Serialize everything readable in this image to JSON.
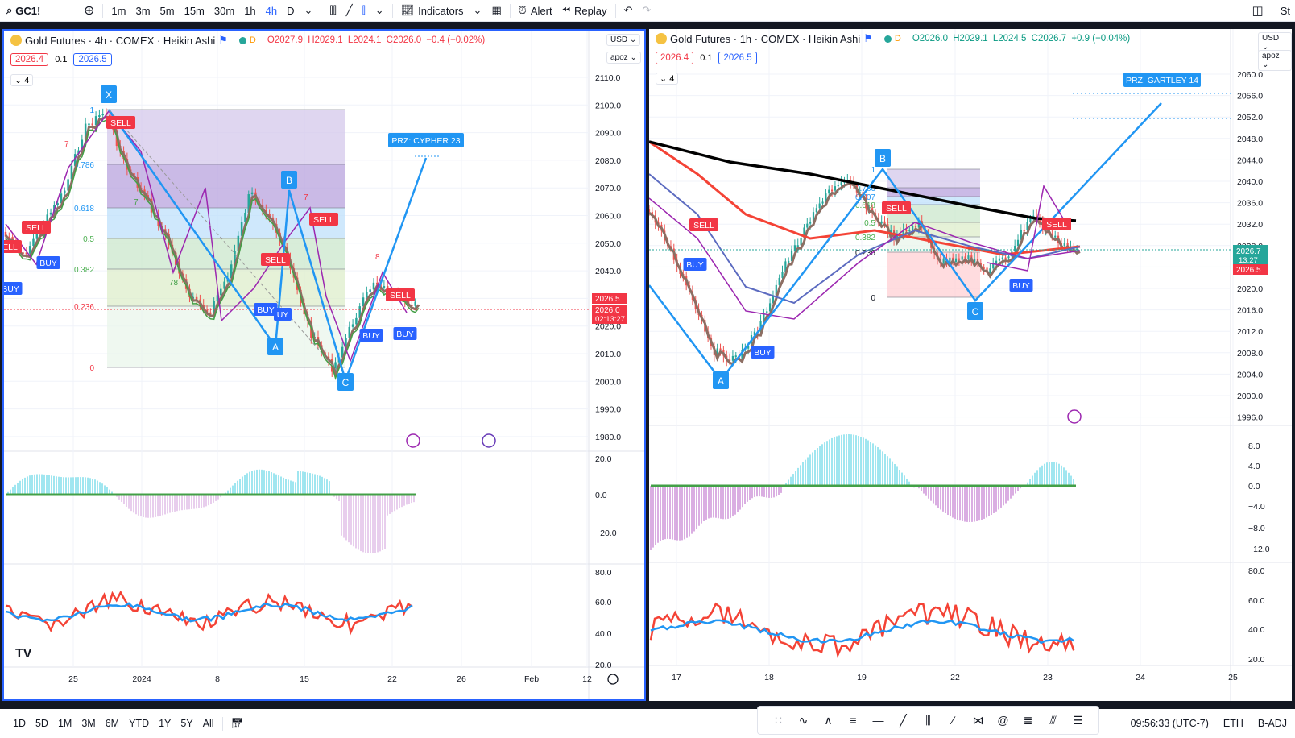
{
  "topbar": {
    "symbol": "GC1!",
    "intervals": [
      "1m",
      "3m",
      "5m",
      "15m",
      "30m",
      "1h",
      "4h",
      "D"
    ],
    "active_interval": "4h",
    "indicators": "Indicators",
    "alert": "Alert",
    "replay": "Replay",
    "right_cut": "St"
  },
  "left": {
    "title": "Gold Futures · 4h · COMEX · Heikin Ashi",
    "badge": "D",
    "ohlc": {
      "o": "O2027.9",
      "h": "H2029.1",
      "l": "L2024.1",
      "c": "C2026.0",
      "chg": "−0.4 (−0.02%)"
    },
    "bid": "2026.4",
    "spread": "0.1",
    "ask": "2026.5",
    "collapse": "4",
    "currency": "USD",
    "scale_mode": "apoz",
    "price_ticks": [
      "2110.0",
      "2100.0",
      "2090.0",
      "2080.0",
      "2070.0",
      "2060.0",
      "2050.0",
      "2040.0",
      "2030.0",
      "2020.0",
      "2010.0",
      "2000.0",
      "1990.0",
      "1980.0"
    ],
    "price_tags": [
      "2026.5",
      "2026.0",
      "02:13:27"
    ],
    "hist_ticks": [
      "20.0",
      "0.0",
      "−20.0"
    ],
    "rsi_ticks": [
      "80.0",
      "60.0",
      "40.0",
      "20.0"
    ],
    "time_ticks": [
      "25",
      "2024",
      "8",
      "15",
      "22",
      "26",
      "Feb",
      "12"
    ],
    "fib_levels": [
      "1",
      "0.786",
      "0.618",
      "0.5",
      "0.382",
      "0.236",
      "0"
    ],
    "points": [
      "X",
      "A",
      "B",
      "C"
    ],
    "prz": "PRZ: CYPHER 23",
    "signals": {
      "sell": "SELL",
      "buy": "BUY",
      "uy": "UY",
      "seven": "7",
      "eight": "8",
      "ts": "78"
    }
  },
  "right": {
    "title": "Gold Futures · 1h · COMEX · Heikin Ashi",
    "badge": "D",
    "ohlc": {
      "o": "O2026.0",
      "h": "H2029.1",
      "l": "L2024.5",
      "c": "C2026.7",
      "chg": "+0.9 (+0.04%)"
    },
    "bid": "2026.4",
    "spread": "0.1",
    "ask": "2026.5",
    "collapse": "4",
    "currency": "USD",
    "scale_mode": "apoz",
    "price_ticks": [
      "2060.0",
      "2056.0",
      "2052.0",
      "2048.0",
      "2044.0",
      "2040.0",
      "2036.0",
      "2032.0",
      "2028.0",
      "2024.0",
      "2020.0",
      "2016.0",
      "2012.0",
      "2008.0",
      "2004.0",
      "2000.0",
      "1996.0"
    ],
    "price_tags": [
      "2026.7",
      "13:27",
      "2026.5"
    ],
    "hist_ticks": [
      "8.0",
      "4.0",
      "0.0",
      "−4.0",
      "−8.0",
      "−12.0"
    ],
    "rsi_ticks": [
      "80.0",
      "60.0",
      "40.0",
      "20.0"
    ],
    "time_ticks": [
      "17",
      "18",
      "19",
      "22",
      "23",
      "24",
      "25"
    ],
    "fib_levels": [
      "1",
      "0.786",
      "0.707",
      "0.618",
      "0.5",
      "0.382",
      "0.236",
      "0"
    ],
    "points": [
      "A",
      "B",
      "C"
    ],
    "prz": "PRZ: GARTLEY 14",
    "signals": {
      "sell": "SELL",
      "buy": "BUY"
    }
  },
  "bottombar": {
    "ranges": [
      "1D",
      "5D",
      "1M",
      "3M",
      "6M",
      "YTD",
      "1Y",
      "5Y",
      "All"
    ],
    "clock": "09:56:33 (UTC-7)",
    "session": "ETH",
    "adj": "B-ADJ"
  },
  "colors": {
    "up": "#26a69a",
    "down": "#ef5350",
    "pattern": "#2196f3",
    "purple": "#9c27b0",
    "sell": "#f23645",
    "buy": "#2962ff"
  }
}
